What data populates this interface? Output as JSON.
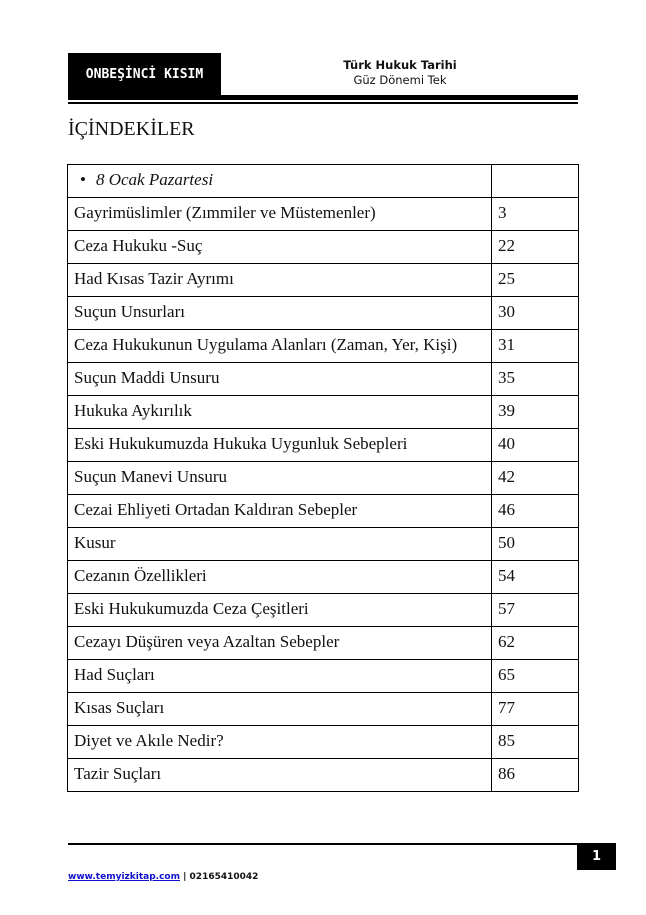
{
  "header": {
    "section_label": "ONBEŞİNCİ KISIM",
    "course_title": "Türk Hukuk Tarihi",
    "course_subtitle": "Güz Dönemi Tek"
  },
  "toc": {
    "heading": "İÇİNDEKİLER",
    "section": "8 Ocak Pazartesi",
    "entries": [
      {
        "title": "Gayrimüslimler (Zımmiler ve Müstemenler)",
        "page": "3"
      },
      {
        "title": "Ceza Hukuku -Suç",
        "page": "22"
      },
      {
        "title": "Had Kısas Tazir Ayrımı",
        "page": "25"
      },
      {
        "title": "Suçun Unsurları",
        "page": "30"
      },
      {
        "title": "Ceza Hukukunun Uygulama Alanları (Zaman, Yer, Kişi)",
        "page": "31"
      },
      {
        "title": "Suçun Maddi Unsuru",
        "page": "35"
      },
      {
        "title": "Hukuka Aykırılık",
        "page": "39"
      },
      {
        "title": "Eski Hukukumuzda Hukuka Uygunluk Sebepleri",
        "page": "40"
      },
      {
        "title": "Suçun Manevi Unsuru",
        "page": "42"
      },
      {
        "title": "Cezai Ehliyeti Ortadan Kaldıran Sebepler",
        "page": "46"
      },
      {
        "title": "Kusur",
        "page": "50"
      },
      {
        "title": "Cezanın Özellikleri",
        "page": "54"
      },
      {
        "title": "Eski Hukukumuzda Ceza Çeşitleri",
        "page": "57"
      },
      {
        "title": "Cezayı Düşüren veya Azaltan Sebepler",
        "page": "62"
      },
      {
        "title": "Had Suçları",
        "page": "65"
      },
      {
        "title": "Kısas Suçları",
        "page": "77"
      },
      {
        "title": "Diyet ve Akıle Nedir?",
        "page": "85"
      },
      {
        "title": "Tazir Suçları",
        "page": "86"
      }
    ]
  },
  "footer": {
    "website": "www.temyizkitap.com",
    "separator": "|",
    "phone": "02165410042",
    "page_number": "1"
  },
  "colors": {
    "link": "#1010d0",
    "box": "#000000"
  }
}
